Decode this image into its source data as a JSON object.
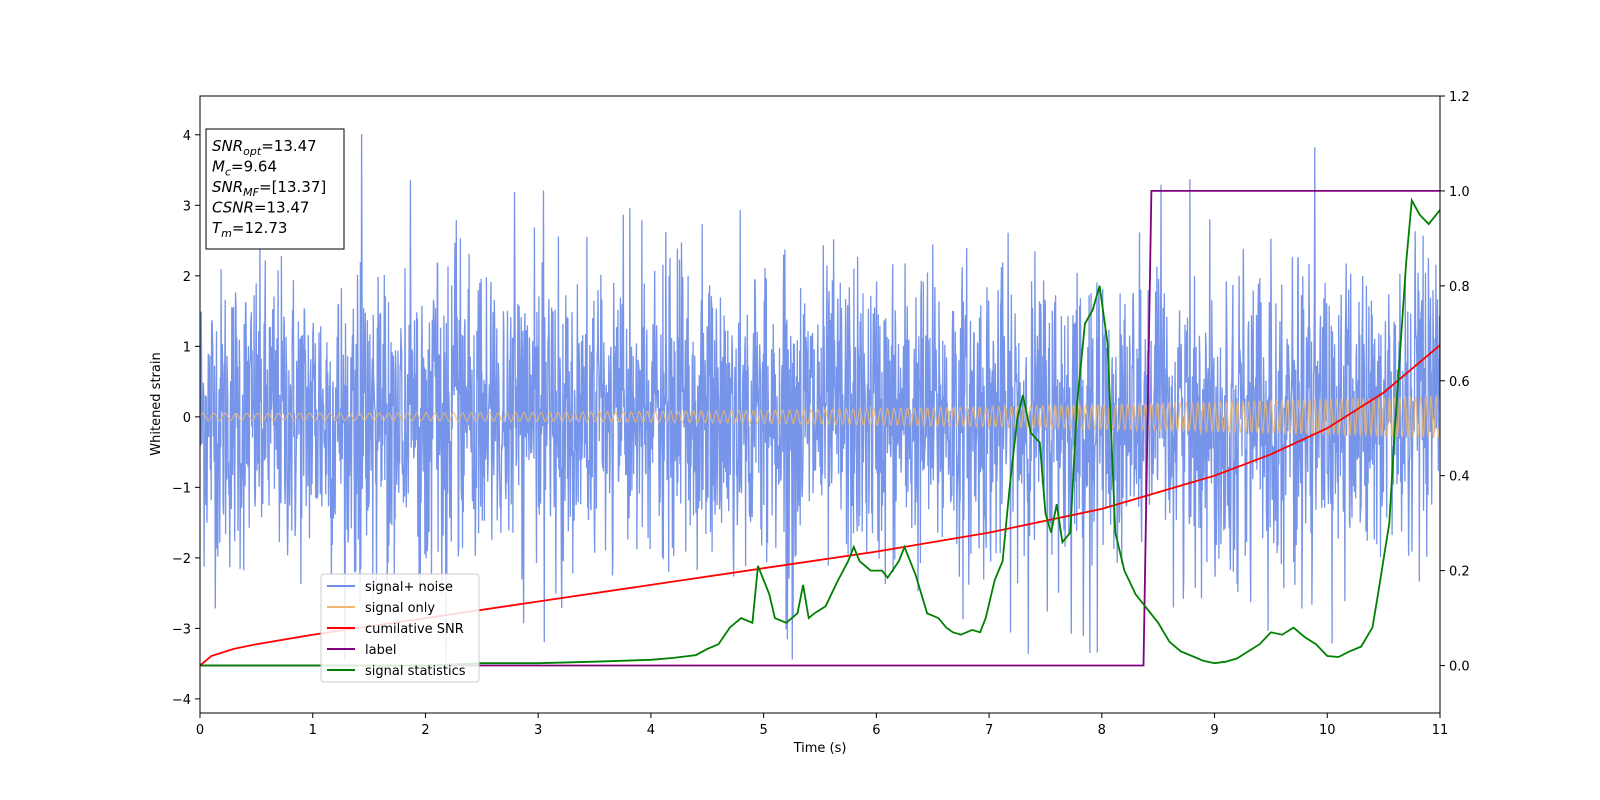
{
  "chart_data": {
    "type": "line",
    "title": "",
    "xlabel": "Time (s)",
    "ylabel": "Whitened strain",
    "xlim": [
      0,
      11
    ],
    "ylim_left": [
      -4.2,
      4.55
    ],
    "ylim_right": [
      -0.1,
      1.2
    ],
    "x_ticks": [
      "0",
      "1",
      "2",
      "3",
      "4",
      "5",
      "6",
      "7",
      "8",
      "9",
      "10",
      "11"
    ],
    "y_ticks_left": [
      "−4",
      "−3",
      "−2",
      "−1",
      "0",
      "1",
      "2",
      "3",
      "4"
    ],
    "y_ticks_right": [
      "0.0",
      "0.2",
      "0.4",
      "0.6",
      "0.8",
      "1.0",
      "1.2"
    ],
    "grid": false,
    "legend_placement": "lower-left",
    "series": [
      {
        "name": "signal+ noise",
        "axis": "left",
        "color": "#6f8ee8",
        "description_range": [
          -3.6,
          4.2
        ],
        "noise_std": 1.05
      },
      {
        "name": "signal only",
        "axis": "left",
        "color": "#f0b86e",
        "amplitude_start": 0.05,
        "amplitude_end": 0.3,
        "freq_start_hz": 10,
        "freq_end_hz": 16
      },
      {
        "name": "cumilative SNR",
        "axis": "right",
        "color": "#ff0000",
        "x": [
          0,
          0.1,
          0.3,
          0.5,
          1,
          2,
          3,
          4,
          5,
          6,
          7,
          8,
          8.5,
          9,
          9.5,
          10,
          10.5,
          11
        ],
        "y": [
          0,
          0.02,
          0.035,
          0.045,
          0.065,
          0.1,
          0.135,
          0.17,
          0.205,
          0.24,
          0.28,
          0.33,
          0.365,
          0.4,
          0.445,
          0.5,
          0.575,
          0.675
        ]
      },
      {
        "name": "label",
        "axis": "right",
        "color": "#800080",
        "x": [
          0,
          8.37,
          8.44,
          11
        ],
        "y": [
          0,
          0,
          1,
          1
        ]
      },
      {
        "name": "signal statistics",
        "axis": "right",
        "color": "#008000",
        "x": [
          0,
          0.5,
          1,
          1.5,
          2,
          2.5,
          3,
          3.5,
          4,
          4.2,
          4.4,
          4.5,
          4.6,
          4.7,
          4.8,
          4.9,
          4.95,
          5.05,
          5.1,
          5.2,
          5.3,
          5.35,
          5.4,
          5.45,
          5.55,
          5.65,
          5.75,
          5.8,
          5.85,
          5.95,
          6.05,
          6.1,
          6.2,
          6.25,
          6.35,
          6.45,
          6.55,
          6.62,
          6.68,
          6.75,
          6.85,
          6.92,
          6.97,
          7.05,
          7.12,
          7.18,
          7.25,
          7.3,
          7.37,
          7.45,
          7.5,
          7.55,
          7.6,
          7.65,
          7.72,
          7.78,
          7.85,
          7.92,
          7.98,
          8.05,
          8.12,
          8.2,
          8.3,
          8.4,
          8.5,
          8.55,
          8.6,
          8.7,
          8.8,
          8.9,
          9.0,
          9.1,
          9.2,
          9.3,
          9.4,
          9.5,
          9.6,
          9.7,
          9.8,
          9.9,
          10.0,
          10.1,
          10.2,
          10.3,
          10.4,
          10.45,
          10.55,
          10.6,
          10.7,
          10.75,
          10.82,
          10.9,
          11.0
        ],
        "y": [
          0,
          0,
          0.0,
          0.0,
          0.0,
          0.005,
          0.005,
          0.008,
          0.012,
          0.016,
          0.022,
          0.035,
          0.045,
          0.08,
          0.1,
          0.09,
          0.21,
          0.15,
          0.1,
          0.09,
          0.11,
          0.17,
          0.1,
          0.11,
          0.125,
          0.175,
          0.22,
          0.25,
          0.22,
          0.2,
          0.2,
          0.185,
          0.22,
          0.25,
          0.19,
          0.11,
          0.1,
          0.08,
          0.07,
          0.065,
          0.075,
          0.07,
          0.1,
          0.18,
          0.22,
          0.37,
          0.52,
          0.57,
          0.49,
          0.47,
          0.32,
          0.28,
          0.34,
          0.26,
          0.28,
          0.55,
          0.72,
          0.75,
          0.8,
          0.68,
          0.28,
          0.2,
          0.15,
          0.12,
          0.09,
          0.07,
          0.05,
          0.03,
          0.02,
          0.01,
          0.005,
          0.008,
          0.015,
          0.03,
          0.045,
          0.07,
          0.065,
          0.08,
          0.06,
          0.045,
          0.02,
          0.018,
          0.03,
          0.04,
          0.08,
          0.15,
          0.3,
          0.5,
          0.85,
          0.98,
          0.95,
          0.93,
          0.96
        ]
      }
    ],
    "info_box": [
      {
        "main": "SNR",
        "sub": "opt",
        "rest": "=13.47"
      },
      {
        "main": "M",
        "sub": "c",
        "rest": "=9.64"
      },
      {
        "main": "SNR",
        "sub": "MF",
        "rest": "=[13.37]"
      },
      {
        "main": "CSNR",
        "sub": "",
        "rest": "=13.47"
      },
      {
        "main": "T",
        "sub": "m",
        "rest": "=12.73"
      }
    ]
  }
}
